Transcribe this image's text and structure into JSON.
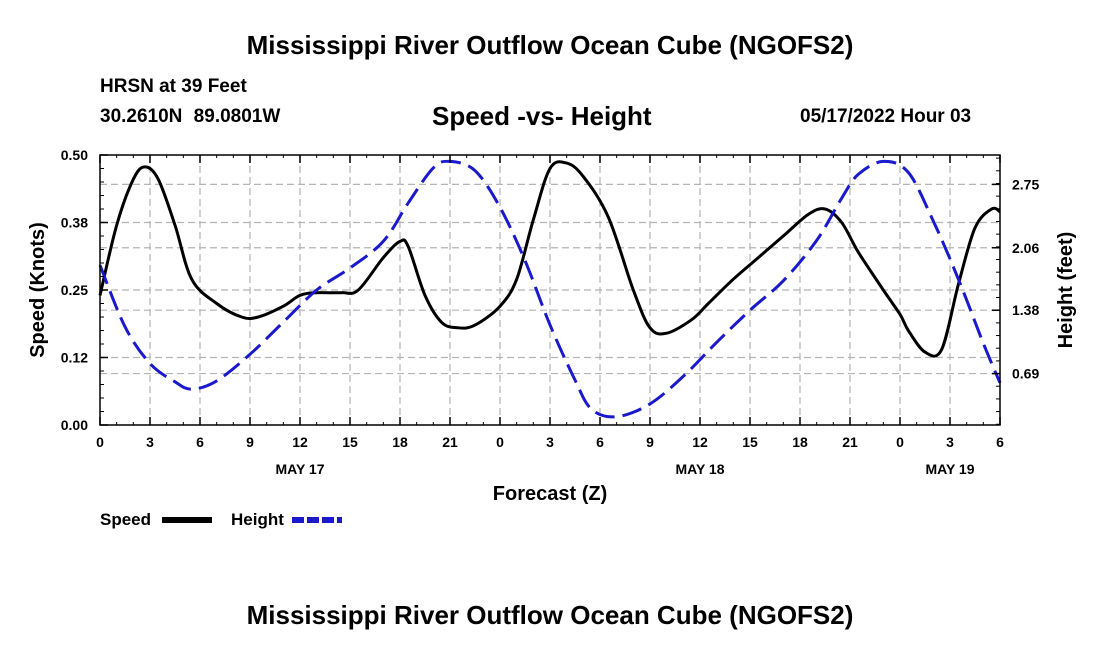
{
  "header": {
    "title": "Mississippi River Outflow Ocean Cube (NGOFS2)",
    "title_repeat": "Mississippi River Outflow Ocean Cube (NGOFS2)",
    "station": "HRSN at 39 Feet",
    "coords": "30.2610N 89.0801W",
    "subtitle": "Speed -vs- Height",
    "datetime": "05/17/2022 Hour 03"
  },
  "colors": {
    "speed": "#000000",
    "height": "#1a1acc",
    "grid": "#b4b4b4"
  },
  "chart_data": {
    "type": "line",
    "xlabel": "Forecast (Z)",
    "ylabel": "Speed (Knots)",
    "y2label": "Height (feet)",
    "x_range_hours": [
      0,
      54
    ],
    "x_tick_labels": [
      "0",
      "3",
      "6",
      "9",
      "12",
      "15",
      "18",
      "21",
      "0",
      "3",
      "6",
      "9",
      "12",
      "15",
      "18",
      "21",
      "0",
      "3",
      "6"
    ],
    "date_labels": [
      {
        "label": "MAY 17",
        "hour": 12
      },
      {
        "label": "MAY 18",
        "hour": 36
      },
      {
        "label": "MAY 19",
        "hour": 51
      }
    ],
    "ylim": [
      0,
      0.5
    ],
    "y_tick_labels": [
      "0.00",
      "0.12",
      "0.25",
      "0.38",
      "0.50"
    ],
    "y2lim": [
      0.13,
      3.07
    ],
    "y2_tick_values": [
      0.69,
      1.38,
      2.06,
      2.75
    ],
    "y2_tick_labels": [
      "0.69",
      "1.38",
      "2.06",
      "2.75"
    ],
    "grid": true,
    "legend": {
      "position": "bottom-left",
      "items": [
        "Speed",
        "Height"
      ]
    },
    "series": [
      {
        "name": "Speed",
        "axis": "left",
        "x": [
          0,
          1,
          2,
          2.7,
          3.5,
          4.5,
          5.5,
          7,
          8.5,
          9.5,
          11,
          12,
          13,
          14.5,
          15.5,
          17,
          18,
          18.5,
          19.5,
          20.5,
          21.5,
          22.5,
          24,
          25,
          26,
          27,
          28,
          29,
          30.5,
          32,
          33,
          34,
          35.5,
          36.5,
          38,
          39.5,
          41,
          42.5,
          43.5,
          44.5,
          45.5,
          47,
          48,
          48.5,
          49.5,
          50.5,
          51.5,
          52.5,
          53.5,
          54
        ],
        "y": [
          0.24,
          0.37,
          0.455,
          0.478,
          0.455,
          0.37,
          0.27,
          0.225,
          0.2,
          0.2,
          0.22,
          0.24,
          0.245,
          0.245,
          0.25,
          0.31,
          0.34,
          0.33,
          0.24,
          0.19,
          0.18,
          0.185,
          0.22,
          0.27,
          0.38,
          0.475,
          0.485,
          0.46,
          0.385,
          0.25,
          0.18,
          0.17,
          0.195,
          0.225,
          0.27,
          0.31,
          0.35,
          0.39,
          0.4,
          0.375,
          0.32,
          0.25,
          0.205,
          0.175,
          0.135,
          0.14,
          0.26,
          0.365,
          0.4,
          0.395
        ]
      },
      {
        "name": "Height",
        "axis": "right",
        "x": [
          0,
          1.5,
          3,
          4.5,
          5.5,
          7,
          9,
          11,
          13,
          15,
          17,
          18.5,
          20,
          21,
          22.5,
          24,
          25.5,
          27,
          28.5,
          29.5,
          31,
          33,
          35,
          37,
          39,
          41,
          43,
          44.5,
          45.5,
          47,
          48.5,
          50,
          51.5,
          53,
          54
        ],
        "y": [
          1.87,
          1.2,
          0.8,
          0.6,
          0.52,
          0.61,
          0.9,
          1.25,
          1.6,
          1.84,
          2.13,
          2.55,
          2.93,
          3.0,
          2.9,
          2.5,
          1.92,
          1.22,
          0.62,
          0.3,
          0.22,
          0.36,
          0.66,
          1.03,
          1.38,
          1.7,
          2.14,
          2.6,
          2.86,
          3.0,
          2.88,
          2.35,
          1.72,
          1.02,
          0.59
        ]
      }
    ]
  }
}
